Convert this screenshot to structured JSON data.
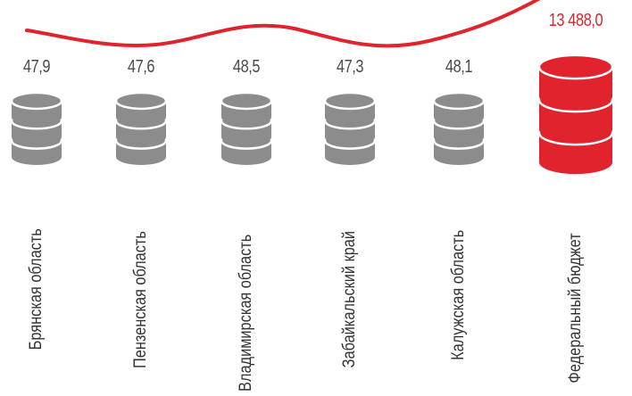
{
  "chart_data": {
    "type": "bar",
    "categories": [
      "Брянская область",
      "Пензенская область",
      "Владимирская область",
      "Забайкальский край",
      "Калужская область",
      "Федеральный бюджет"
    ],
    "values": [
      47.9,
      47.6,
      48.5,
      47.3,
      48.1,
      13488.0
    ],
    "value_labels": [
      "47,9",
      "47,6",
      "48,5",
      "47,3",
      "48,1",
      "13 488,0"
    ],
    "highlight_index": 5,
    "colors": {
      "regular": "#8c8c8c",
      "highlight": "#e1232d",
      "trend_line": "#e1232d",
      "value_text": "#4a4a4a"
    }
  }
}
